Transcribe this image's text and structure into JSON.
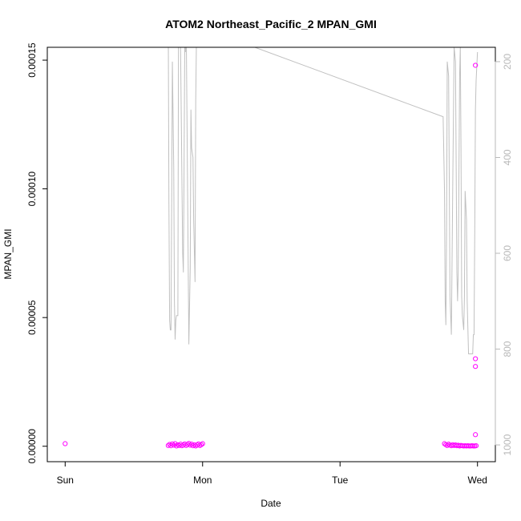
{
  "chart_data": {
    "type": "scatter",
    "title": "ATOM2 Northeast_Pacific_2 MPAN_GMI",
    "xlabel": "Date",
    "ylabel": "MPAN_GMI",
    "x_ticks": [
      {
        "day": 0,
        "label": "Sun"
      },
      {
        "day": 1,
        "label": "Mon"
      },
      {
        "day": 2,
        "label": "Tue"
      },
      {
        "day": 3,
        "label": "Wed"
      }
    ],
    "xlim": [
      -0.13,
      3.13
    ],
    "ylim": [
      -6e-06,
      0.000155
    ],
    "y_ticks": [
      {
        "value": 0.0,
        "label": "0.00000"
      },
      {
        "value": 5e-05,
        "label": "0.00005"
      },
      {
        "value": 0.0001,
        "label": "0.00010"
      },
      {
        "value": 0.00015,
        "label": "0.00015"
      }
    ],
    "right_axis": {
      "lim": [
        1035,
        170
      ],
      "reversed": true,
      "ticks": [
        {
          "value": 200,
          "label": "200"
        },
        {
          "value": 400,
          "label": "400"
        },
        {
          "value": 600,
          "label": "600"
        },
        {
          "value": 800,
          "label": "800"
        },
        {
          "value": 1000,
          "label": "1000"
        }
      ],
      "color": "#b8b8b8"
    },
    "series": [
      {
        "kind": "points",
        "color": "#ff00ff",
        "x_unit": "days since Sun 00:00",
        "points": [
          [
            0.0,
            1e-06
          ],
          [
            0.75,
            3e-07
          ],
          [
            0.76,
            7e-07
          ],
          [
            0.77,
            2e-07
          ],
          [
            0.78,
            9e-07
          ],
          [
            0.79,
            4e-07
          ],
          [
            0.8,
            1e-06
          ],
          [
            0.81,
            1e-07
          ],
          [
            0.82,
            6e-07
          ],
          [
            0.83,
            3e-07
          ],
          [
            0.84,
            8e-07
          ],
          [
            0.85,
            2e-07
          ],
          [
            0.86,
            5e-07
          ],
          [
            0.87,
            9e-07
          ],
          [
            0.88,
            3e-07
          ],
          [
            0.89,
            7e-07
          ],
          [
            0.9,
            1.1e-06
          ],
          [
            0.91,
            4e-07
          ],
          [
            0.92,
            8e-07
          ],
          [
            0.93,
            2e-07
          ],
          [
            0.94,
            6e-07
          ],
          [
            0.95,
            1e-07
          ],
          [
            0.96,
            5e-07
          ],
          [
            0.97,
            9e-07
          ],
          [
            0.98,
            3e-07
          ],
          [
            0.99,
            6e-07
          ],
          [
            1.0,
            1e-06
          ],
          [
            2.76,
            1e-06
          ],
          [
            2.77,
            6e-07
          ],
          [
            2.78,
            3e-07
          ],
          [
            2.79,
            8e-07
          ],
          [
            2.8,
            4e-07
          ],
          [
            2.81,
            2e-07
          ],
          [
            2.82,
            6e-07
          ],
          [
            2.83,
            3e-07
          ],
          [
            2.84,
            5e-07
          ],
          [
            2.85,
            2e-07
          ],
          [
            2.86,
            4e-07
          ],
          [
            2.87,
            1e-07
          ],
          [
            2.88,
            3e-07
          ],
          [
            2.89,
            2e-07
          ],
          [
            2.9,
            1e-07
          ],
          [
            2.91,
            2e-07
          ],
          [
            2.92,
            1e-07
          ],
          [
            2.93,
            2e-07
          ],
          [
            2.94,
            1e-07
          ],
          [
            2.95,
            1e-07
          ],
          [
            2.96,
            2e-07
          ],
          [
            2.97,
            1e-07
          ],
          [
            2.98,
            1e-07
          ],
          [
            2.99,
            2e-07
          ],
          [
            2.985,
            4.5e-06
          ],
          [
            2.985,
            3.1e-05
          ],
          [
            2.985,
            3.4e-05
          ],
          [
            2.985,
            0.000148
          ]
        ]
      },
      {
        "kind": "line",
        "color": "#c0c0c0",
        "axis": "right",
        "x_unit": "days since Sun 00:00",
        "points": [
          [
            0.75,
            110
          ],
          [
            0.755,
            500
          ],
          [
            0.76,
            740
          ],
          [
            0.765,
            760
          ],
          [
            0.77,
            760
          ],
          [
            0.775,
            500
          ],
          [
            0.78,
            200
          ],
          [
            0.79,
            420
          ],
          [
            0.795,
            700
          ],
          [
            0.8,
            780
          ],
          [
            0.805,
            740
          ],
          [
            0.81,
            730
          ],
          [
            0.82,
            730
          ],
          [
            0.825,
            100
          ],
          [
            0.835,
            100
          ],
          [
            0.84,
            180
          ],
          [
            0.855,
            600
          ],
          [
            0.86,
            640
          ],
          [
            0.865,
            430
          ],
          [
            0.87,
            170
          ],
          [
            0.875,
            180
          ],
          [
            0.88,
            100
          ],
          [
            0.9,
            790
          ],
          [
            0.91,
            630
          ],
          [
            0.915,
            300
          ],
          [
            0.92,
            380
          ],
          [
            0.93,
            400
          ],
          [
            0.935,
            530
          ],
          [
            0.945,
            660
          ],
          [
            0.95,
            280
          ],
          [
            0.955,
            160
          ],
          [
            0.96,
            100
          ],
          [
            1.0,
            110
          ],
          [
            1.38,
            170
          ],
          [
            2.75,
            315
          ],
          [
            2.76,
            470
          ],
          [
            2.765,
            700
          ],
          [
            2.77,
            750
          ],
          [
            2.775,
            560
          ],
          [
            2.78,
            200
          ],
          [
            2.79,
            230
          ],
          [
            2.8,
            690
          ],
          [
            2.81,
            770
          ],
          [
            2.82,
            460
          ],
          [
            2.83,
            170
          ],
          [
            2.84,
            200
          ],
          [
            2.85,
            640
          ],
          [
            2.855,
            700
          ],
          [
            2.86,
            640
          ],
          [
            2.87,
            230
          ],
          [
            2.875,
            170
          ],
          [
            2.88,
            380
          ],
          [
            2.885,
            690
          ],
          [
            2.89,
            730
          ],
          [
            2.9,
            760
          ],
          [
            2.905,
            690
          ],
          [
            2.91,
            470
          ],
          [
            2.92,
            530
          ],
          [
            2.925,
            700
          ],
          [
            2.935,
            810
          ],
          [
            2.95,
            810
          ],
          [
            2.965,
            810
          ],
          [
            2.97,
            770
          ],
          [
            2.975,
            770
          ],
          [
            2.98,
            560
          ],
          [
            2.985,
            300
          ],
          [
            2.99,
            240
          ],
          [
            3.0,
            180
          ]
        ]
      }
    ],
    "grid": false,
    "legend": "none"
  }
}
